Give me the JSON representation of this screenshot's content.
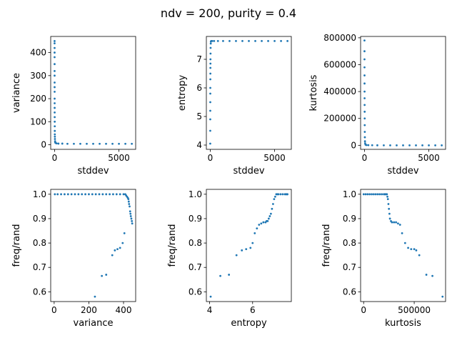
{
  "figure": {
    "title": "ndv = 200, purity = 0.4"
  },
  "colors": {
    "marker": "#1f77b4",
    "axis": "#000000",
    "background": "#ffffff"
  },
  "chart_data": [
    {
      "type": "scatter",
      "xlabel": "stddev",
      "ylabel": "variance",
      "xlim": [
        -300,
        6300
      ],
      "ylim": [
        -20,
        470
      ],
      "xticks": [
        0,
        5000
      ],
      "yticks": [
        0,
        100,
        200,
        300,
        400
      ],
      "yticklabels": [
        "0",
        "100",
        "200",
        "300",
        "400"
      ],
      "x": [
        1,
        1,
        2,
        2,
        2,
        3,
        3,
        3,
        4,
        4,
        5,
        5,
        6,
        7,
        8,
        10,
        12,
        15,
        18,
        20,
        25,
        30,
        40,
        50,
        80,
        150,
        300,
        600,
        1000,
        1500,
        2000,
        2500,
        3000,
        3500,
        4000,
        4500,
        5000,
        5500,
        6000
      ],
      "y": [
        450,
        440,
        420,
        400,
        380,
        350,
        320,
        300,
        270,
        250,
        230,
        200,
        180,
        160,
        140,
        120,
        100,
        80,
        60,
        45,
        35,
        25,
        15,
        10,
        8,
        6,
        5,
        5,
        4,
        4,
        4,
        4,
        4,
        4,
        4,
        4,
        4,
        4,
        4
      ]
    },
    {
      "type": "scatter",
      "xlabel": "stddev",
      "ylabel": "entropy",
      "xlim": [
        -300,
        6300
      ],
      "ylim": [
        3.85,
        7.8
      ],
      "xticks": [
        0,
        5000
      ],
      "yticks": [
        4,
        5,
        6,
        7
      ],
      "yticklabels": [
        "4",
        "5",
        "6",
        "7"
      ],
      "x": [
        1,
        2,
        3,
        4,
        5,
        6,
        8,
        10,
        12,
        15,
        18,
        20,
        25,
        30,
        40,
        50,
        80,
        150,
        300,
        600,
        1000,
        1500,
        2000,
        2500,
        3000,
        3500,
        4000,
        4500,
        5000,
        5500,
        6000
      ],
      "y": [
        4.05,
        4.5,
        4.9,
        5.2,
        5.5,
        5.8,
        6.0,
        6.3,
        6.5,
        6.7,
        6.85,
        7.0,
        7.2,
        7.4,
        7.55,
        7.62,
        7.64,
        7.64,
        7.64,
        7.64,
        7.64,
        7.64,
        7.64,
        7.64,
        7.64,
        7.64,
        7.64,
        7.64,
        7.64,
        7.64,
        7.64
      ]
    },
    {
      "type": "scatter",
      "xlabel": "stddev",
      "ylabel": "kurtosis",
      "xlim": [
        -300,
        6300
      ],
      "ylim": [
        -30000,
        810000
      ],
      "xticks": [
        0,
        5000
      ],
      "yticks": [
        0,
        200000,
        400000,
        600000,
        800000
      ],
      "yticklabels": [
        "0",
        "200000",
        "400000",
        "600000",
        "800000"
      ],
      "x": [
        1,
        2,
        3,
        4,
        5,
        6,
        8,
        10,
        12,
        15,
        18,
        20,
        25,
        30,
        40,
        50,
        80,
        150,
        300,
        600,
        1000,
        1500,
        2000,
        2500,
        3000,
        3500,
        4000,
        4500,
        5000,
        5500,
        6000
      ],
      "y": [
        780000,
        700000,
        640000,
        580000,
        520000,
        460000,
        400000,
        350000,
        300000,
        250000,
        200000,
        150000,
        100000,
        60000,
        30000,
        15000,
        5000,
        2000,
        1000,
        500,
        200,
        100,
        50,
        50,
        50,
        50,
        50,
        50,
        50,
        50,
        50
      ]
    },
    {
      "type": "scatter",
      "xlabel": "variance",
      "ylabel": "freq/rand",
      "xlim": [
        -20,
        470
      ],
      "ylim": [
        0.56,
        1.02
      ],
      "xticks": [
        0,
        200,
        400
      ],
      "yticks": [
        0.6,
        0.7,
        0.8,
        0.9,
        1.0
      ],
      "yticklabels": [
        "0.6",
        "0.7",
        "0.8",
        "0.9",
        "1.0"
      ],
      "x": [
        4,
        20,
        40,
        60,
        80,
        100,
        120,
        140,
        160,
        180,
        200,
        220,
        240,
        260,
        280,
        300,
        320,
        340,
        360,
        380,
        400,
        410,
        415,
        420,
        425,
        428,
        430,
        432,
        435,
        438,
        440,
        442,
        445,
        448,
        450,
        235,
        275,
        300,
        335,
        350,
        365,
        380,
        395,
        405
      ],
      "y": [
        1.0,
        1.0,
        1.0,
        1.0,
        1.0,
        1.0,
        1.0,
        1.0,
        1.0,
        1.0,
        1.0,
        1.0,
        1.0,
        1.0,
        1.0,
        1.0,
        1.0,
        1.0,
        1.0,
        1.0,
        1.0,
        1.0,
        0.995,
        0.99,
        0.985,
        0.98,
        0.97,
        0.96,
        0.95,
        0.93,
        0.92,
        0.91,
        0.9,
        0.89,
        0.88,
        0.58,
        0.665,
        0.67,
        0.75,
        0.77,
        0.775,
        0.78,
        0.8,
        0.84
      ]
    },
    {
      "type": "scatter",
      "xlabel": "entropy",
      "ylabel": "freq/rand",
      "xlim": [
        3.85,
        7.8
      ],
      "ylim": [
        0.56,
        1.02
      ],
      "xticks": [
        4,
        6
      ],
      "yticks": [
        0.6,
        0.7,
        0.8,
        0.9,
        1.0
      ],
      "yticklabels": [
        "0.6",
        "0.7",
        "0.8",
        "0.9",
        "1.0"
      ],
      "x": [
        4.05,
        4.5,
        4.9,
        5.25,
        5.5,
        5.7,
        5.9,
        6.0,
        6.1,
        6.2,
        6.3,
        6.4,
        6.5,
        6.6,
        6.65,
        6.7,
        6.75,
        6.8,
        6.85,
        6.9,
        6.95,
        7.0,
        7.05,
        7.1,
        7.15,
        7.2,
        7.3,
        7.4,
        7.5,
        7.55,
        7.6,
        7.62
      ],
      "y": [
        0.58,
        0.665,
        0.67,
        0.75,
        0.77,
        0.775,
        0.78,
        0.8,
        0.84,
        0.86,
        0.875,
        0.88,
        0.885,
        0.885,
        0.89,
        0.89,
        0.9,
        0.91,
        0.92,
        0.94,
        0.96,
        0.98,
        0.99,
        1.0,
        1.0,
        1.0,
        1.0,
        1.0,
        1.0,
        1.0,
        1.0,
        1.0
      ]
    },
    {
      "type": "scatter",
      "xlabel": "kurtosis",
      "ylabel": "freq/rand",
      "xlim": [
        -30000,
        810000
      ],
      "ylim": [
        0.56,
        1.02
      ],
      "xticks": [
        0,
        500000
      ],
      "yticks": [
        0.6,
        0.7,
        0.8,
        0.9,
        1.0
      ],
      "yticklabels": [
        "0.6",
        "0.7",
        "0.8",
        "0.9",
        "1.0"
      ],
      "x": [
        50,
        20000,
        40000,
        60000,
        80000,
        100000,
        120000,
        140000,
        160000,
        180000,
        200000,
        210000,
        220000,
        230000,
        235000,
        240000,
        245000,
        250000,
        255000,
        260000,
        270000,
        280000,
        300000,
        320000,
        340000,
        360000,
        380000,
        410000,
        440000,
        470000,
        500000,
        520000,
        550000,
        620000,
        680000,
        780000
      ],
      "y": [
        1.0,
        1.0,
        1.0,
        1.0,
        1.0,
        1.0,
        1.0,
        1.0,
        1.0,
        1.0,
        1.0,
        1.0,
        1.0,
        1.0,
        0.99,
        0.98,
        0.96,
        0.94,
        0.92,
        0.9,
        0.89,
        0.885,
        0.885,
        0.885,
        0.88,
        0.875,
        0.84,
        0.8,
        0.78,
        0.775,
        0.775,
        0.77,
        0.75,
        0.67,
        0.665,
        0.58
      ]
    }
  ]
}
